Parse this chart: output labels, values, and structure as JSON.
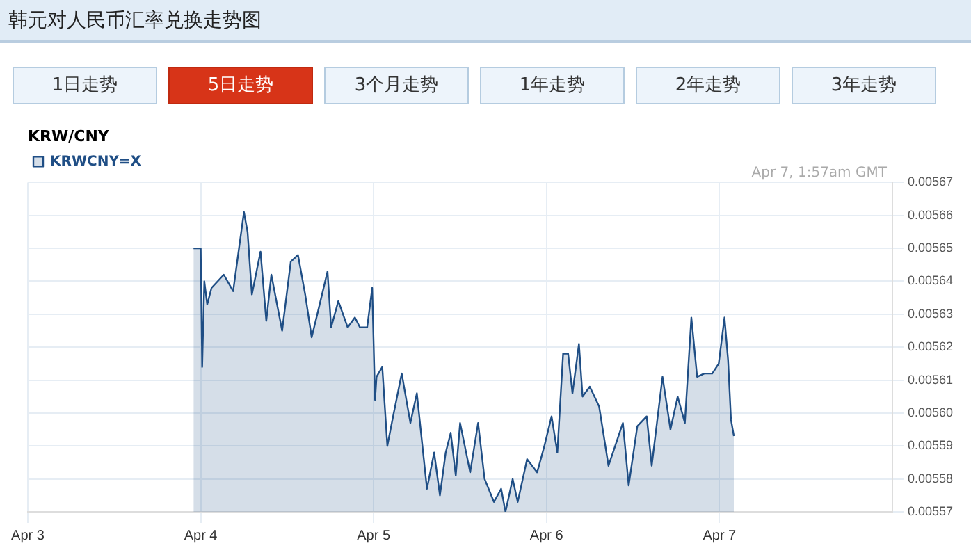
{
  "chart_data": {
    "type": "area",
    "title": "韩元对人民币汇率兑换走势图",
    "subtitle": "KRW/CNY",
    "annotations": [
      "Apr 7, 1:57am GMT",
      "1日走势",
      "5日走势",
      "3个月走势",
      "1年走势",
      "2年走势",
      "3年走势"
    ],
    "x": [
      "--04-03T23:00",
      "--04-04T00:00",
      "--04-04T00:12",
      "--04-04T00:30",
      "--04-04T00:54",
      "--04-04T01:30",
      "--04-04T03:12",
      "--04-04T04:30",
      "--04-04T06:00",
      "--04-04T06:30",
      "--04-04T07:06",
      "--04-04T08:18",
      "--04-04T09:06",
      "--04-04T09:48",
      "--04-04T11:18",
      "--04-04T12:30",
      "--04-04T13:30",
      "--04-04T14:30",
      "--04-04T15:24",
      "--04-04T16:24",
      "--04-04T17:36",
      "--04-04T18:06",
      "--04-04T19:06",
      "--04-04T20:24",
      "--04-04T21:24",
      "--04-04T22:06",
      "--04-04T23:06",
      "--04-04T23:48",
      "--04-05T00:00",
      "--04-05T00:12",
      "--04-05T00:24",
      "--04-05T01:12",
      "--04-05T01:54",
      "--04-05T02:42",
      "--04-05T03:54",
      "--04-05T05:06",
      "--04-05T06:00",
      "--04-05T07:24",
      "--04-05T08:24",
      "--04-05T09:12",
      "--04-05T10:00",
      "--04-05T10:42",
      "--04-05T11:24",
      "--04-05T12:00",
      "--04-05T13:24",
      "--04-05T14:30",
      "--04-05T15:24",
      "--04-05T16:42",
      "--04-05T17:42",
      "--04-05T18:18",
      "--04-05T19:18",
      "--04-05T20:00",
      "--04-05T21:18",
      "--04-05T22:42",
      "--04-05T23:42",
      "--04-06T00:42",
      "--04-06T01:30",
      "--04-06T02:18",
      "--04-06T03:00",
      "--04-06T03:36",
      "--04-06T04:30",
      "--04-06T05:00",
      "--04-06T06:00",
      "--04-06T07:18",
      "--04-06T08:36",
      "--04-06T10:36",
      "--04-06T11:24",
      "--04-06T12:36",
      "--04-06T13:54",
      "--04-06T14:36",
      "--04-06T16:06",
      "--04-06T17:12",
      "--04-06T18:12",
      "--04-06T19:12",
      "--04-06T20:06",
      "--04-06T20:54",
      "--04-06T21:54",
      "--04-06T23:00",
      "--04-06T23:54",
      "--04-07T00:42",
      "--04-07T01:12",
      "--04-07T01:36",
      "--04-07T02:00"
    ],
    "series": [
      {
        "name": "KRWCNY=X",
        "color": "#1f4e85",
        "values": [
          0.00565,
          0.00565,
          0.005614,
          0.00564,
          0.005633,
          0.005638,
          0.005642,
          0.005637,
          0.005661,
          0.005655,
          0.005636,
          0.005649,
          0.005628,
          0.005642,
          0.005625,
          0.005646,
          0.005648,
          0.005636,
          0.005623,
          0.005632,
          0.005643,
          0.005626,
          0.005634,
          0.005626,
          0.005629,
          0.005626,
          0.005626,
          0.005638,
          0.005621,
          0.005604,
          0.005611,
          0.005614,
          0.00559,
          0.005599,
          0.005612,
          0.005597,
          0.005606,
          0.005577,
          0.005588,
          0.005575,
          0.005588,
          0.005594,
          0.005581,
          0.005597,
          0.005582,
          0.005597,
          0.00558,
          0.005573,
          0.005577,
          0.00557,
          0.00558,
          0.005573,
          0.005586,
          0.005582,
          0.00559,
          0.005599,
          0.005588,
          0.005618,
          0.005618,
          0.005606,
          0.005621,
          0.005605,
          0.005608,
          0.005602,
          0.005584,
          0.005597,
          0.005578,
          0.005596,
          0.005599,
          0.005584,
          0.005611,
          0.005595,
          0.005605,
          0.005597,
          0.005629,
          0.005611,
          0.005612,
          0.005612,
          0.005615,
          0.005629,
          0.005616,
          0.005598,
          0.005593
        ]
      }
    ],
    "xlim": [
      "--04-03",
      "--04-08"
    ],
    "xticks": [
      {
        "value": "--04-03",
        "label": "Apr 3"
      },
      {
        "value": "--04-04",
        "label": "Apr 4"
      },
      {
        "value": "--04-05",
        "label": "Apr 5"
      },
      {
        "value": "--04-06",
        "label": "Apr 6"
      },
      {
        "value": "--04-07",
        "label": "Apr 7"
      }
    ],
    "ylim": [
      0.00557,
      0.00567
    ],
    "yticks": [
      {
        "value": 0.00557,
        "label": "0.00557"
      },
      {
        "value": 0.00558,
        "label": "0.00558"
      },
      {
        "value": 0.00559,
        "label": "0.00559"
      },
      {
        "value": 0.0056,
        "label": "0.00560"
      },
      {
        "value": 0.00561,
        "label": "0.00561"
      },
      {
        "value": 0.00562,
        "label": "0.00562"
      },
      {
        "value": 0.00563,
        "label": "0.00563"
      },
      {
        "value": 0.00564,
        "label": "0.00564"
      },
      {
        "value": 0.00565,
        "label": "0.00565"
      },
      {
        "value": 0.00566,
        "label": "0.00566"
      },
      {
        "value": 0.00567,
        "label": "0.00567"
      }
    ],
    "grid": true,
    "legend": "top left"
  }
}
